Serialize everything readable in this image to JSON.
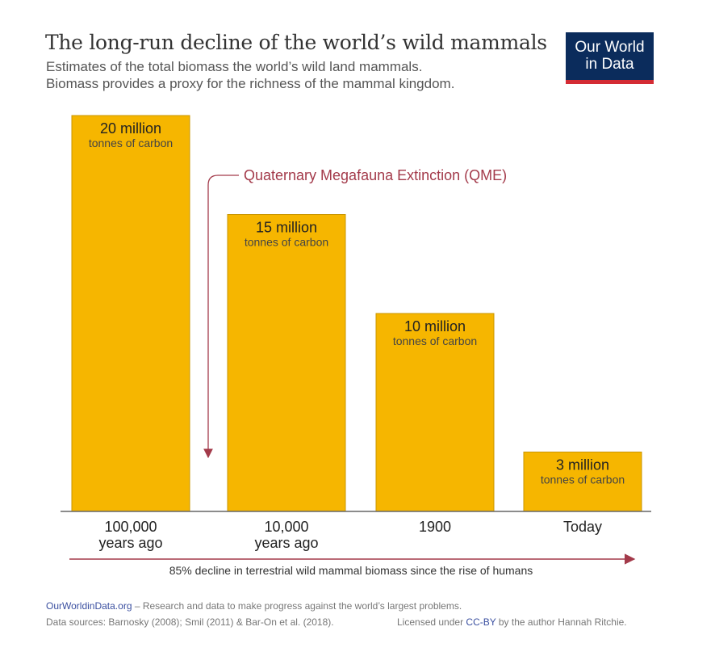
{
  "header": {
    "title": "The long-run decline of the world’s wild mammals",
    "subtitle_line1": "Estimates of the total biomass the world’s wild land mammals.",
    "subtitle_line2": "Biomass provides a proxy for the richness of the mammal kingdom.",
    "logo_line1": "Our World",
    "logo_line2": "in Data"
  },
  "chart_data": {
    "type": "bar",
    "categories": [
      [
        "100,000",
        "years ago"
      ],
      [
        "10,000",
        "years ago"
      ],
      [
        "1900"
      ],
      [
        "Today"
      ]
    ],
    "values": [
      20,
      15,
      10,
      3
    ],
    "value_labels": [
      "20 million",
      "15 million",
      "10 million",
      "3 million"
    ],
    "unit_label": "tonnes of carbon",
    "ylim": [
      0,
      20
    ],
    "bar_color": "#f6b600",
    "annotation": "Quaternary Megafauna Extinction (QME)",
    "annotation_color": "#a33a4a",
    "bottom_note": "85% decline in terrestrial wild mammal biomass since the rise of humans"
  },
  "footer": {
    "site": "OurWorldinData.org",
    "site_tagline": " – Research and data to make progress against the world’s largest problems.",
    "sources": "Data sources: Barnosky (2008); Smil (2011) & Bar-On et al. (2018).",
    "license_prefix": "Licensed under ",
    "license_link": "CC-BY",
    "license_suffix": " by the author Hannah Ritchie."
  }
}
